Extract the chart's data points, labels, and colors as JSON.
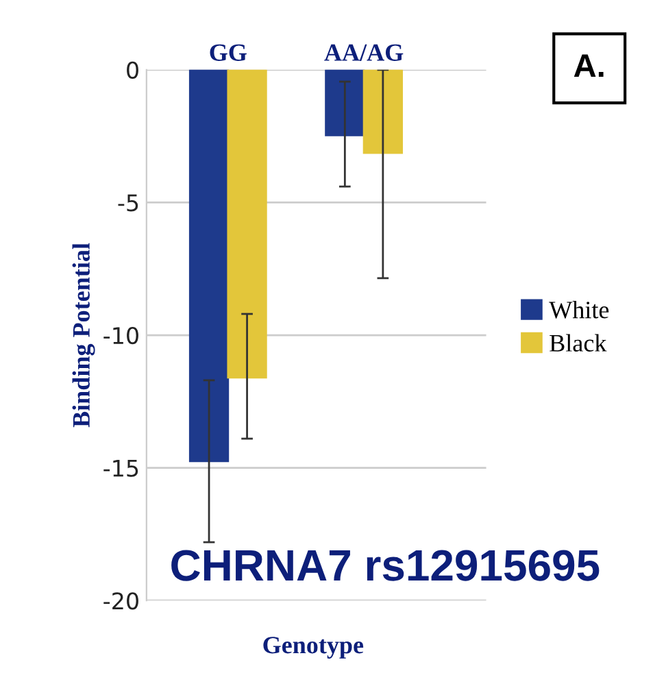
{
  "chart_data": {
    "type": "bar",
    "title": "CHRNA7 rs12915695",
    "xlabel": "Genotype",
    "ylabel": "Binding Potential",
    "annotations": [
      "A."
    ],
    "categories": [
      "GG",
      "AA/AG"
    ],
    "series": [
      {
        "name": "White",
        "color": "#1e3a8c",
        "values": [
          -14.75,
          -2.47
        ],
        "errors": [
          [
            -17.8,
            -11.7
          ],
          [
            -4.4,
            -0.45
          ]
        ]
      },
      {
        "name": "Black",
        "color": "#e3c63a",
        "values": [
          -11.6,
          -3.13
        ],
        "errors": [
          [
            -13.9,
            -9.2
          ],
          [
            -7.85,
            0
          ]
        ]
      }
    ],
    "ylim": [
      -20,
      0
    ],
    "yticks": [
      -20,
      -15,
      -10,
      -5,
      0
    ],
    "grid": "y",
    "legend": "right"
  }
}
